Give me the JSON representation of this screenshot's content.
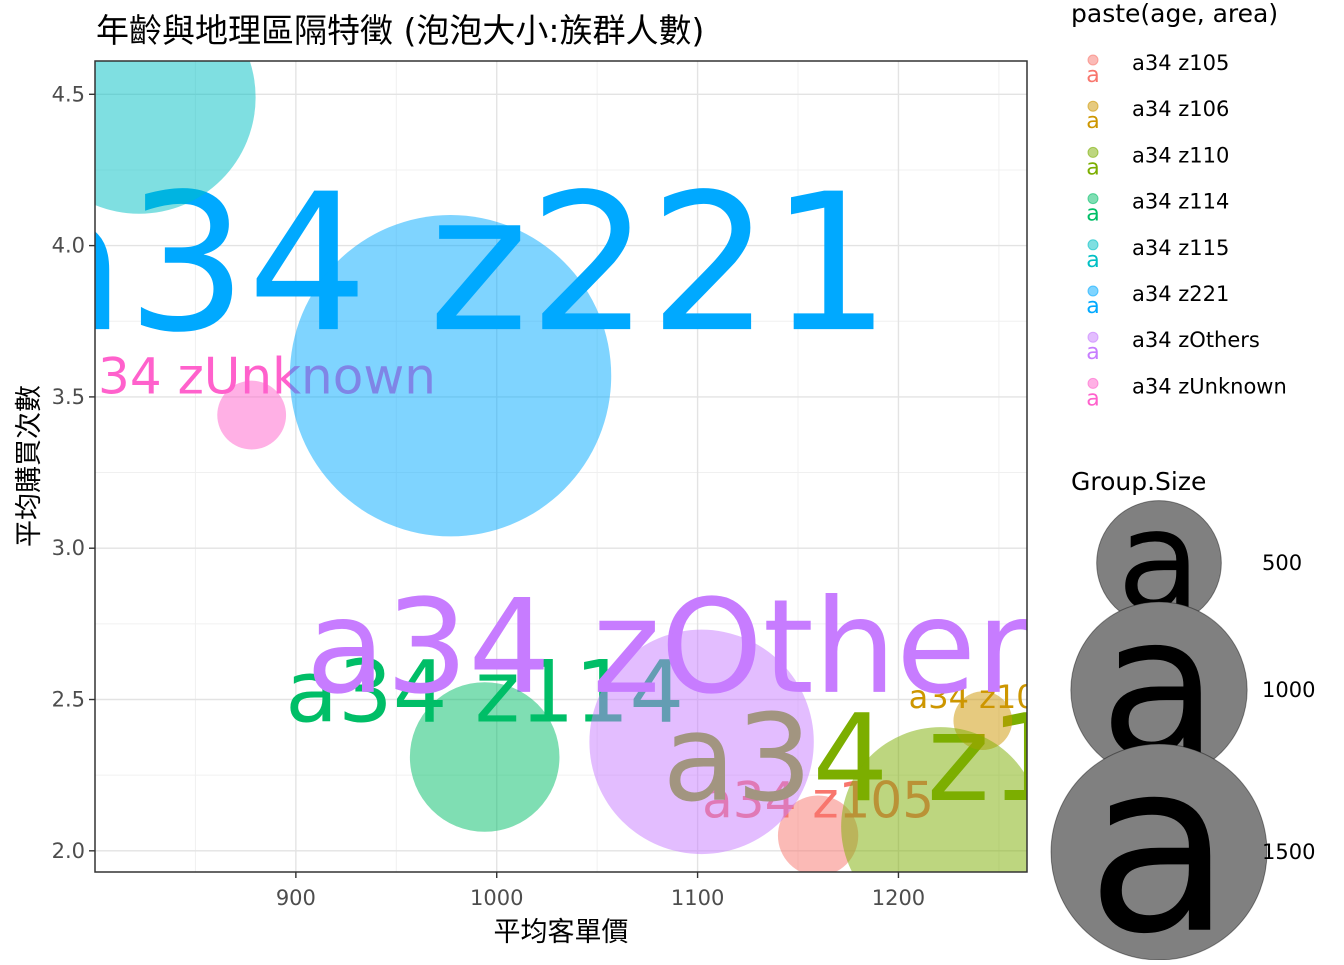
{
  "chart_data": {
    "type": "scatter",
    "title": "年齡與地理區隔特徵 (泡泡大小:族群人數)",
    "xlabel": "平均客單價",
    "ylabel": "平均購買次數",
    "xlim": [
      800,
      1264
    ],
    "ylim": [
      1.93,
      4.61
    ],
    "x_ticks": [
      900,
      1000,
      1100,
      1200
    ],
    "y_ticks": [
      2.0,
      2.5,
      3.0,
      3.5,
      4.0,
      4.5
    ],
    "x_tick_labels": [
      "900",
      "1000",
      "1100",
      "1200"
    ],
    "y_tick_labels": [
      "2.0",
      "2.5",
      "3.0",
      "3.5",
      "4.0",
      "4.5"
    ],
    "grid": true,
    "legend_color_title": "paste(age, area)",
    "legend_size_title": "Group.Size",
    "legend_placement": "right",
    "size_legend": [
      {
        "value": 500,
        "label": "500"
      },
      {
        "value": 1000,
        "label": "1000"
      },
      {
        "value": 1500,
        "label": "1500"
      }
    ],
    "series": [
      {
        "name": "a34 z105",
        "color": "#F8766D",
        "x": 1160,
        "y": 2.05,
        "size": 150,
        "label_x": 1160,
        "label_y": 2.17,
        "label_size": 50
      },
      {
        "name": "a34 z106",
        "color": "#CD9600",
        "x": 1242,
        "y": 2.43,
        "size": 80,
        "label_x": 1242,
        "label_y": 2.51,
        "label_size": 32
      },
      {
        "name": "a34 z110",
        "color": "#7CAE00",
        "x": 1221,
        "y": 2.08,
        "size": 920,
        "label_x": 1221,
        "label_y": 2.31,
        "label_size": 120
      },
      {
        "name": "a34 z114",
        "color": "#00BE67",
        "x": 994,
        "y": 2.31,
        "size": 520,
        "label_x": 994,
        "label_y": 2.53,
        "label_size": 86
      },
      {
        "name": "a34 z115",
        "color": "#00BFC4",
        "x": 822,
        "y": 4.49,
        "size": 1260,
        "label_x": 822,
        "label_y": 4.49,
        "label_size": 0
      },
      {
        "name": "a34 z221",
        "color": "#00A9FF",
        "x": 977,
        "y": 3.57,
        "size": 2400,
        "label_x": 977,
        "label_y": 3.95,
        "label_size": 190
      },
      {
        "name": "a34 zOthers",
        "color": "#C77CFF",
        "x": 1102,
        "y": 2.36,
        "size": 1170,
        "label_x": 1102,
        "label_y": 2.68,
        "label_size": 130
      },
      {
        "name": "a34 zUnknown",
        "color": "#FF61CC",
        "x": 878,
        "y": 3.44,
        "size": 110,
        "label_x": 878,
        "label_y": 3.57,
        "label_size": 50
      }
    ]
  }
}
